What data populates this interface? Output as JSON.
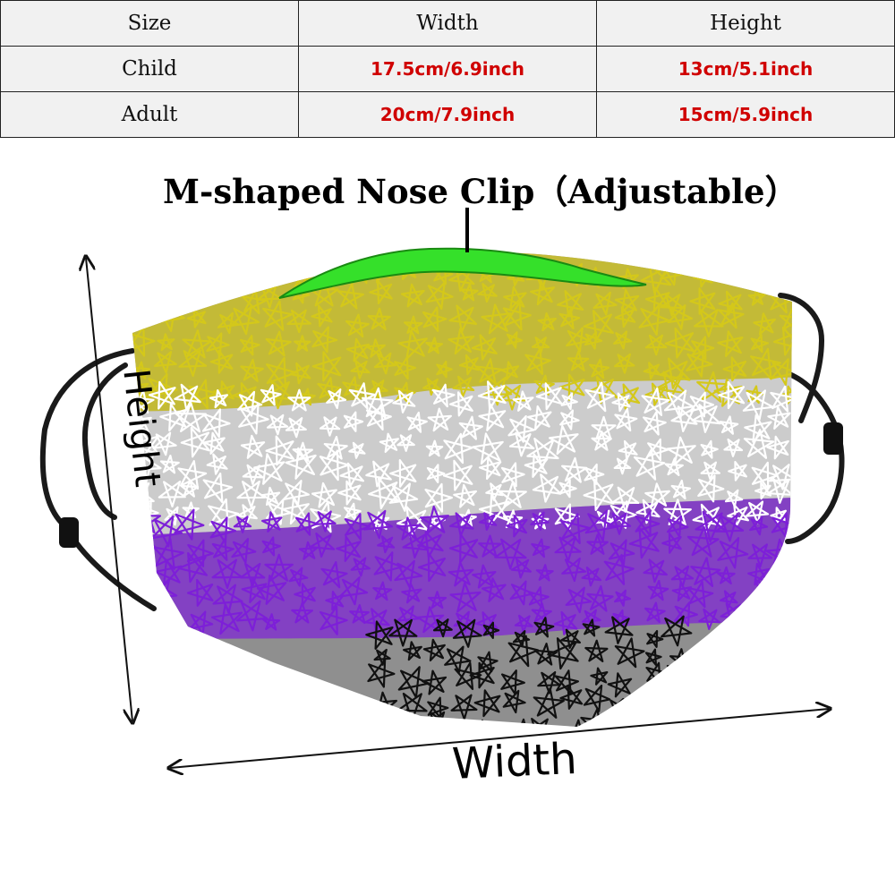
{
  "size_table": {
    "headers": [
      "Size",
      "Width",
      "Height"
    ],
    "rows": [
      {
        "size": "Child",
        "width": "17.5cm/6.9inch",
        "height": "13cm/5.1inch"
      },
      {
        "size": "Adult",
        "width": "20cm/7.9inch",
        "height": "15cm/5.9inch"
      }
    ]
  },
  "nose_clip_label": "M-shaped Nose Clip（Adjustable）",
  "height_label": "Height",
  "width_label": "Width",
  "colors": {
    "table_bg": "#f1f1f1",
    "value_text": "#d00000",
    "mask_base": "#8f8f8f",
    "stripe_yellow": "#d4c81a",
    "stripe_white": "#ffffff",
    "stripe_purple": "#7d1fd8",
    "stripe_black": "#111111",
    "nose_clip": "#35e02a"
  }
}
